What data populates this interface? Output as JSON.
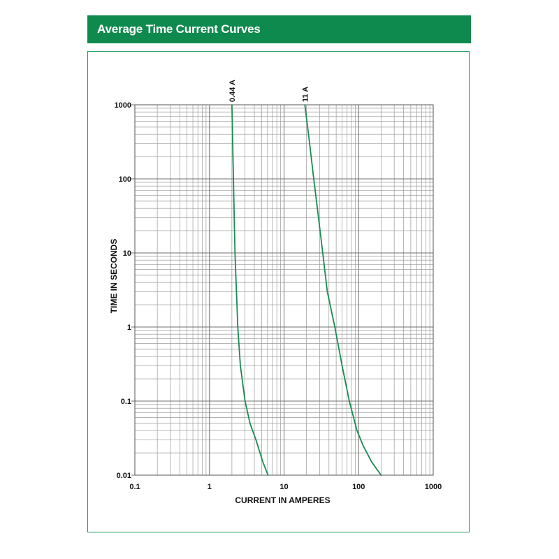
{
  "header": {
    "title": "Average Time Current Curves",
    "color": "#0f8a4e"
  },
  "chart_data": {
    "type": "line",
    "title": "",
    "xlabel": "CURRENT IN AMPERES",
    "ylabel": "TIME IN SECONDS",
    "xscale": "log",
    "yscale": "log",
    "xlim": [
      0.1,
      1000
    ],
    "ylim": [
      0.01,
      1000
    ],
    "grid": true,
    "x_ticks": [
      "0.1",
      "1",
      "10",
      "100",
      "1000"
    ],
    "y_ticks": [
      "1000",
      "100",
      "10",
      "1",
      "0.1",
      "0.01"
    ],
    "line_color": "#1a8a55",
    "series": [
      {
        "name": "0.44 A",
        "points": [
          [
            2.0,
            1000
          ],
          [
            2.05,
            300
          ],
          [
            2.1,
            100
          ],
          [
            2.15,
            30
          ],
          [
            2.2,
            10
          ],
          [
            2.3,
            3
          ],
          [
            2.4,
            1
          ],
          [
            2.6,
            0.3
          ],
          [
            3.0,
            0.1
          ],
          [
            3.5,
            0.05
          ],
          [
            4.2,
            0.03
          ],
          [
            5.2,
            0.015
          ],
          [
            6.1,
            0.01
          ]
        ]
      },
      {
        "name": "11 A",
        "points": [
          [
            19,
            1000
          ],
          [
            22,
            300
          ],
          [
            25,
            100
          ],
          [
            28,
            40
          ],
          [
            33,
            10
          ],
          [
            38,
            3
          ],
          [
            48,
            1
          ],
          [
            60,
            0.3
          ],
          [
            75,
            0.1
          ],
          [
            95,
            0.04
          ],
          [
            115,
            0.025
          ],
          [
            150,
            0.015
          ],
          [
            200,
            0.01
          ]
        ]
      }
    ]
  }
}
